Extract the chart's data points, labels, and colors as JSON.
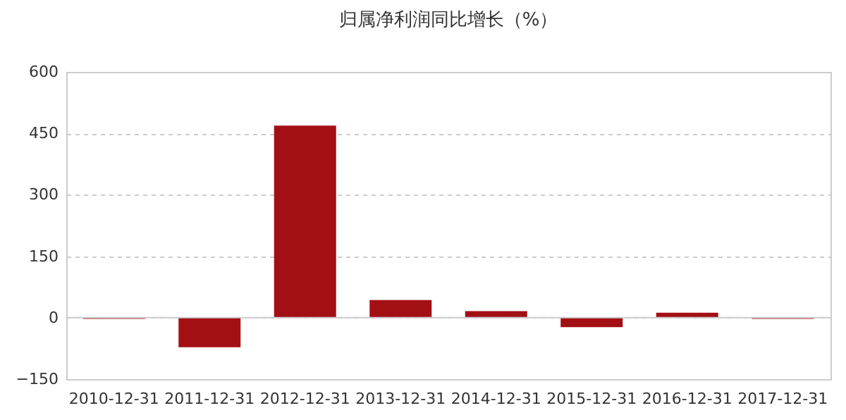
{
  "chart_data": {
    "type": "bar",
    "title": "归属净利润同比增长（%）",
    "categories": [
      "2010-12-31",
      "2011-12-31",
      "2012-12-31",
      "2013-12-31",
      "2014-12-31",
      "2015-12-31",
      "2016-12-31",
      "2017-12-31"
    ],
    "values": [
      -3,
      -72,
      469,
      43,
      16,
      -23,
      12,
      -3
    ],
    "color": "#a31014",
    "ylim": [
      -150,
      600
    ],
    "yticks": [
      -150,
      0,
      150,
      300,
      450,
      600
    ],
    "grid": "y"
  }
}
